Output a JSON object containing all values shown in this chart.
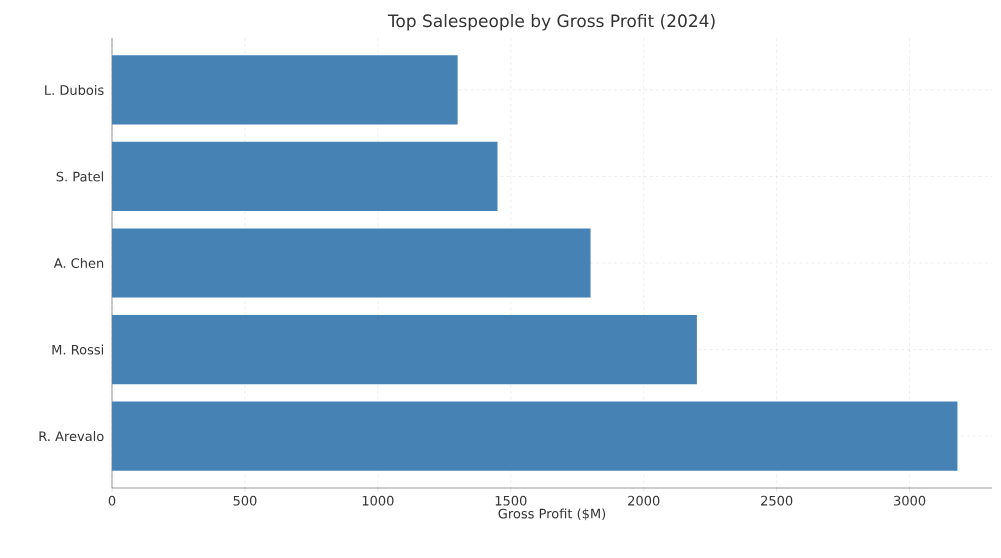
{
  "chart_data": {
    "type": "bar",
    "orientation": "horizontal",
    "title": "Top Salespeople by Gross Profit (2024)",
    "xlabel": "Gross Profit ($M)",
    "categories": [
      "L. Dubois",
      "S. Patel",
      "A. Chen",
      "M. Rossi",
      "R. Arevalo"
    ],
    "values": [
      1300,
      1450,
      1800,
      2200,
      3180
    ],
    "color": "#4682b4",
    "xlim": [
      0,
      3310
    ],
    "xticks": [
      0,
      500,
      1000,
      1500,
      2000,
      2500,
      3000
    ],
    "grid": true
  }
}
